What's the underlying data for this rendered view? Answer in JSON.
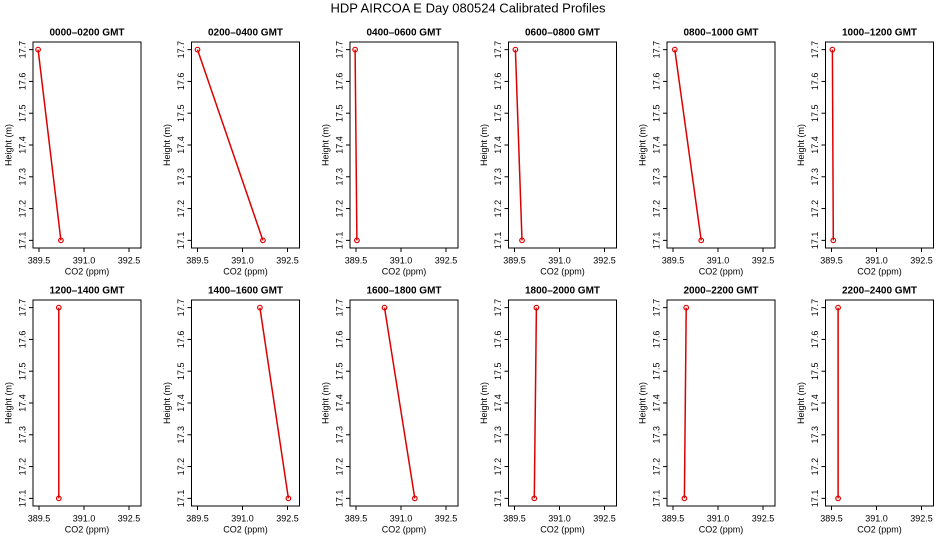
{
  "title": "HDP AIRCOA E  Day 080524  Calibrated Profiles",
  "chart_data": [
    {
      "type": "line",
      "title": "0000–0200 GMT",
      "xlabel": "CO2 (ppm)",
      "ylabel": "Height (m)",
      "x": [
        389.47,
        390.23
      ],
      "values": [
        17.7,
        17.1
      ],
      "color": "#dd0000",
      "xlim": [
        389.3,
        392.9
      ],
      "ylim": [
        17.076,
        17.724
      ],
      "xticks": [
        389.5,
        {
          "value": 391,
          "label": "391.0"
        },
        392.5
      ],
      "yticks": [
        17.1,
        17.2,
        17.3,
        17.4,
        17.5,
        17.6,
        17.7
      ]
    },
    {
      "type": "line",
      "title": "0200–0400 GMT",
      "xlabel": "CO2 (ppm)",
      "ylabel": "Height (m)",
      "x": [
        389.5,
        391.68
      ],
      "values": [
        17.7,
        17.1
      ],
      "color": "#dd0000",
      "xlim": [
        389.3,
        392.9
      ],
      "ylim": [
        17.076,
        17.724
      ],
      "xticks": [
        389.5,
        {
          "value": 391,
          "label": "391.0"
        },
        392.5
      ],
      "yticks": [
        17.1,
        17.2,
        17.3,
        17.4,
        17.5,
        17.6,
        17.7
      ]
    },
    {
      "type": "line",
      "title": "0400–0600 GMT",
      "xlabel": "CO2 (ppm)",
      "ylabel": "Height (m)",
      "x": [
        389.47,
        389.53
      ],
      "values": [
        17.7,
        17.1
      ],
      "color": "#dd0000",
      "xlim": [
        389.3,
        392.9
      ],
      "ylim": [
        17.076,
        17.724
      ],
      "xticks": [
        389.5,
        {
          "value": 391,
          "label": "391.0"
        },
        392.5
      ],
      "yticks": [
        17.1,
        17.2,
        17.3,
        17.4,
        17.5,
        17.6,
        17.7
      ]
    },
    {
      "type": "line",
      "title": "0600–0800 GMT",
      "xlabel": "CO2 (ppm)",
      "ylabel": "Height (m)",
      "x": [
        389.53,
        389.75
      ],
      "values": [
        17.7,
        17.1
      ],
      "color": "#dd0000",
      "xlim": [
        389.3,
        392.9
      ],
      "ylim": [
        17.076,
        17.724
      ],
      "xticks": [
        389.5,
        {
          "value": 391,
          "label": "391.0"
        },
        392.5
      ],
      "yticks": [
        17.1,
        17.2,
        17.3,
        17.4,
        17.5,
        17.6,
        17.7
      ]
    },
    {
      "type": "line",
      "title": "0800–1000 GMT",
      "xlabel": "CO2 (ppm)",
      "ylabel": "Height (m)",
      "x": [
        389.56,
        390.44
      ],
      "values": [
        17.7,
        17.1
      ],
      "color": "#dd0000",
      "xlim": [
        389.3,
        392.9
      ],
      "ylim": [
        17.076,
        17.724
      ],
      "xticks": [
        389.5,
        {
          "value": 391,
          "label": "391.0"
        },
        392.5
      ],
      "yticks": [
        17.1,
        17.2,
        17.3,
        17.4,
        17.5,
        17.6,
        17.7
      ]
    },
    {
      "type": "line",
      "title": "1000–1200 GMT",
      "xlabel": "CO2 (ppm)",
      "ylabel": "Height (m)",
      "x": [
        389.53,
        389.56
      ],
      "values": [
        17.7,
        17.1
      ],
      "color": "#dd0000",
      "xlim": [
        389.3,
        392.9
      ],
      "ylim": [
        17.076,
        17.724
      ],
      "xticks": [
        389.5,
        {
          "value": 391,
          "label": "391.0"
        },
        392.5
      ],
      "yticks": [
        17.1,
        17.2,
        17.3,
        17.4,
        17.5,
        17.6,
        17.7
      ]
    },
    {
      "type": "line",
      "title": "1200–1400 GMT",
      "xlabel": "CO2 (ppm)",
      "ylabel": "Height (m)",
      "x": [
        390.16,
        390.16
      ],
      "values": [
        17.7,
        17.1
      ],
      "color": "#dd0000",
      "xlim": [
        389.3,
        392.9
      ],
      "ylim": [
        17.076,
        17.724
      ],
      "xticks": [
        389.5,
        {
          "value": 391,
          "label": "391.0"
        },
        392.5
      ],
      "yticks": [
        17.1,
        17.2,
        17.3,
        17.4,
        17.5,
        17.6,
        17.7
      ]
    },
    {
      "type": "line",
      "title": "1400–1600 GMT",
      "xlabel": "CO2 (ppm)",
      "ylabel": "Height (m)",
      "x": [
        391.58,
        392.53
      ],
      "values": [
        17.7,
        17.1
      ],
      "color": "#dd0000",
      "xlim": [
        389.3,
        392.9
      ],
      "ylim": [
        17.076,
        17.724
      ],
      "xticks": [
        389.5,
        {
          "value": 391,
          "label": "391.0"
        },
        392.5
      ],
      "yticks": [
        17.1,
        17.2,
        17.3,
        17.4,
        17.5,
        17.6,
        17.7
      ]
    },
    {
      "type": "line",
      "title": "1600–1800 GMT",
      "xlabel": "CO2 (ppm)",
      "ylabel": "Height (m)",
      "x": [
        390.45,
        391.46
      ],
      "values": [
        17.7,
        17.1
      ],
      "color": "#dd0000",
      "xlim": [
        389.3,
        392.9
      ],
      "ylim": [
        17.076,
        17.724
      ],
      "xticks": [
        389.5,
        {
          "value": 391,
          "label": "391.0"
        },
        392.5
      ],
      "yticks": [
        17.1,
        17.2,
        17.3,
        17.4,
        17.5,
        17.6,
        17.7
      ]
    },
    {
      "type": "line",
      "title": "1800–2000 GMT",
      "xlabel": "CO2 (ppm)",
      "ylabel": "Height (m)",
      "x": [
        390.23,
        390.16
      ],
      "values": [
        17.7,
        17.1
      ],
      "color": "#dd0000",
      "xlim": [
        389.3,
        392.9
      ],
      "ylim": [
        17.076,
        17.724
      ],
      "xticks": [
        389.5,
        {
          "value": 391,
          "label": "391.0"
        },
        392.5
      ],
      "yticks": [
        17.1,
        17.2,
        17.3,
        17.4,
        17.5,
        17.6,
        17.7
      ]
    },
    {
      "type": "line",
      "title": "2000–2200 GMT",
      "xlabel": "CO2 (ppm)",
      "ylabel": "Height (m)",
      "x": [
        389.94,
        389.88
      ],
      "values": [
        17.7,
        17.1
      ],
      "color": "#dd0000",
      "xlim": [
        389.3,
        392.9
      ],
      "ylim": [
        17.076,
        17.724
      ],
      "xticks": [
        389.5,
        {
          "value": 391,
          "label": "391.0"
        },
        392.5
      ],
      "yticks": [
        17.1,
        17.2,
        17.3,
        17.4,
        17.5,
        17.6,
        17.7
      ]
    },
    {
      "type": "line",
      "title": "2200–2400 GMT",
      "xlabel": "CO2 (ppm)",
      "ylabel": "Height (m)",
      "x": [
        389.72,
        389.72
      ],
      "values": [
        17.7,
        17.1
      ],
      "color": "#dd0000",
      "xlim": [
        389.3,
        392.9
      ],
      "ylim": [
        17.076,
        17.724
      ],
      "xticks": [
        389.5,
        {
          "value": 391,
          "label": "391.0"
        },
        392.5
      ],
      "yticks": [
        17.1,
        17.2,
        17.3,
        17.4,
        17.5,
        17.6,
        17.7
      ]
    }
  ]
}
